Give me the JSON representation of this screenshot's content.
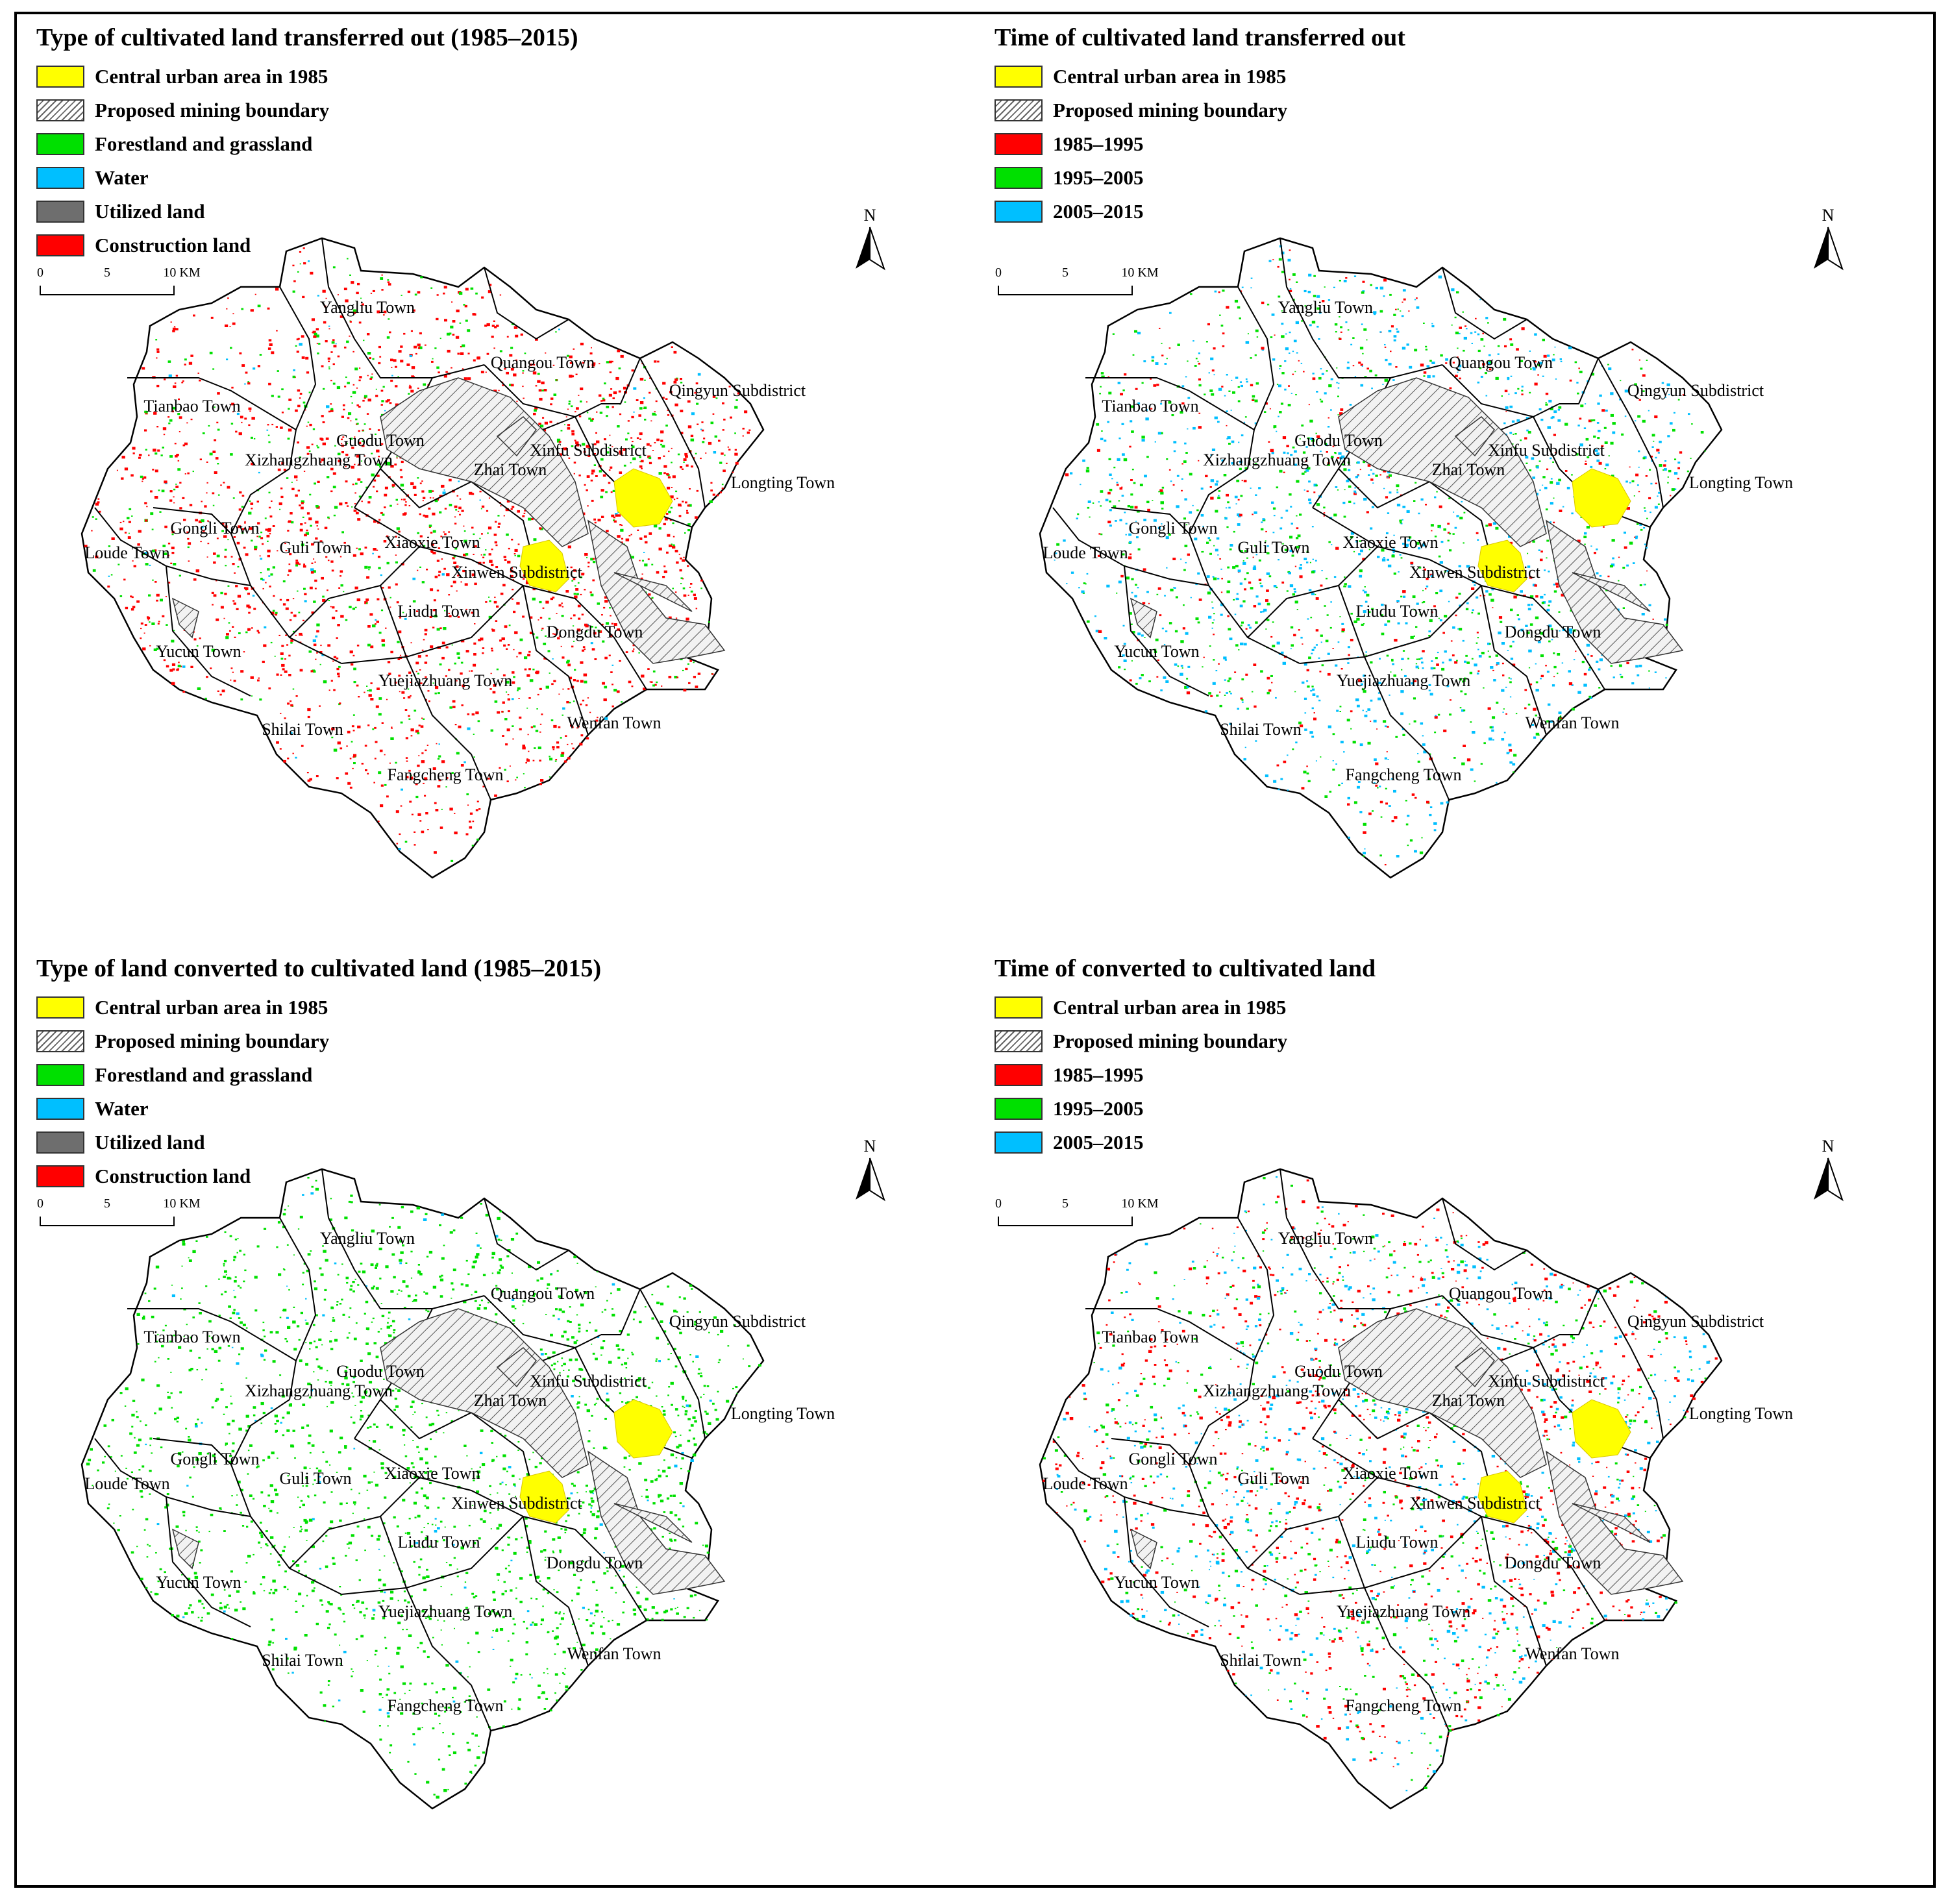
{
  "colors": {
    "central_urban": "#ffff00",
    "forest_grass": "#00e000",
    "water": "#00bfff",
    "utilized": "#6e6e6e",
    "construction": "#ff0000",
    "period_1985_1995": "#ff0000",
    "period_1995_2005": "#00e000",
    "period_2005_2015": "#00bfff"
  },
  "north_label": "N",
  "scale": {
    "ticks": [
      "0",
      "5",
      "10 KM"
    ]
  },
  "towns": [
    "Yangliu Town",
    "Quangou Town",
    "Qingyun Subdistrict",
    "Tianbao Town",
    "Guodu Town",
    "Xinfu Subdistrict",
    "Xizhangzhuang Town",
    "Zhai Town",
    "Longting Town",
    "Gongli Town",
    "Loude Town",
    "Guli Town",
    "Xiaoxie Town",
    "Xinwen Subdistrict",
    "Liudu Town",
    "Dongdu Town",
    "Yucun Town",
    "Yuejiazhuang Town",
    "Shilai Town",
    "Wenfan Town",
    "Fangcheng Town"
  ],
  "panels": [
    {
      "id": "p0",
      "title": "Type of cultivated land transferred out (1985–2015)",
      "legend": [
        {
          "label": "Central urban area in 1985",
          "swatch": "central_urban"
        },
        {
          "label": "Proposed mining boundary",
          "swatch": "hatch"
        },
        {
          "label": "Forestland and grassland",
          "swatch": "forest_grass"
        },
        {
          "label": "Water",
          "swatch": "water"
        },
        {
          "label": "Utilized land",
          "swatch": "utilized"
        },
        {
          "label": "Construction land",
          "swatch": "construction"
        }
      ]
    },
    {
      "id": "p1",
      "title": "Time of cultivated land transferred out",
      "legend": [
        {
          "label": "Central urban area in 1985",
          "swatch": "central_urban"
        },
        {
          "label": "Proposed mining boundary",
          "swatch": "hatch"
        },
        {
          "label": "1985–1995",
          "swatch": "period_1985_1995"
        },
        {
          "label": "1995–2005",
          "swatch": "period_1995_2005"
        },
        {
          "label": "2005–2015",
          "swatch": "period_2005_2015"
        }
      ]
    },
    {
      "id": "p2",
      "title": "Type of  land converted to cultivated land (1985–2015)",
      "legend": [
        {
          "label": "Central urban area in 1985",
          "swatch": "central_urban"
        },
        {
          "label": "Proposed mining boundary",
          "swatch": "hatch"
        },
        {
          "label": "Forestland and grassland",
          "swatch": "forest_grass"
        },
        {
          "label": "Water",
          "swatch": "water"
        },
        {
          "label": "Utilized land",
          "swatch": "utilized"
        },
        {
          "label": "Construction land",
          "swatch": "construction"
        }
      ]
    },
    {
      "id": "p3",
      "title": "Time of converted to cultivated land",
      "legend": [
        {
          "label": "Central urban area in 1985",
          "swatch": "central_urban"
        },
        {
          "label": "Proposed mining boundary",
          "swatch": "hatch"
        },
        {
          "label": "1985–1995",
          "swatch": "period_1985_1995"
        },
        {
          "label": "1995–2005",
          "swatch": "period_1995_2005"
        },
        {
          "label": "2005–2015",
          "swatch": "period_2005_2015"
        }
      ]
    }
  ]
}
